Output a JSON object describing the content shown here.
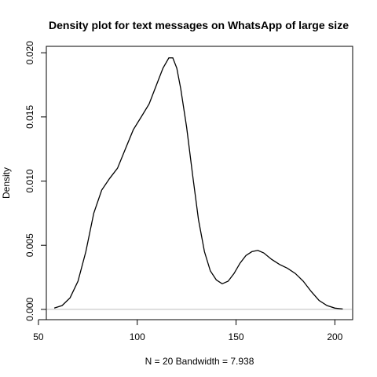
{
  "chart_data": {
    "type": "line",
    "title": "Density plot for text messages on WhatsApp of large size",
    "xlabel": "N = 20   Bandwidth = 7.938",
    "ylabel": "Density",
    "xlim": [
      54,
      209
    ],
    "ylim": [
      -0.0008,
      0.0205
    ],
    "xticks": [
      50,
      100,
      150,
      200
    ],
    "yticks": [
      0.0,
      0.005,
      0.01,
      0.015,
      0.02
    ],
    "xtick_labels": [
      "50",
      "100",
      "150",
      "200"
    ],
    "ytick_labels": [
      "0.000",
      "0.005",
      "0.010",
      "0.015",
      "0.020"
    ],
    "baseline": 0,
    "grid": false,
    "series": [
      {
        "x": [
          58,
          62,
          66,
          70,
          74,
          78,
          82,
          86,
          90,
          94,
          98,
          102,
          106,
          110,
          113,
          116,
          118,
          120,
          122,
          125,
          128,
          131,
          134,
          137,
          140,
          143,
          146,
          149,
          152,
          155,
          158,
          161,
          164,
          168,
          172,
          176,
          180,
          184,
          188,
          192,
          196,
          200,
          204
        ],
        "y": [
          0.0001,
          0.0003,
          0.0009,
          0.0022,
          0.0045,
          0.0075,
          0.0093,
          0.0102,
          0.011,
          0.0125,
          0.014,
          0.015,
          0.016,
          0.0176,
          0.0188,
          0.0196,
          0.0196,
          0.0188,
          0.0172,
          0.0142,
          0.0105,
          0.007,
          0.0045,
          0.003,
          0.0023,
          0.002,
          0.0022,
          0.0028,
          0.0036,
          0.0042,
          0.0045,
          0.0046,
          0.0044,
          0.0039,
          0.0035,
          0.0032,
          0.0028,
          0.0022,
          0.0014,
          0.0007,
          0.0003,
          0.0001,
          3e-05
        ]
      }
    ]
  }
}
